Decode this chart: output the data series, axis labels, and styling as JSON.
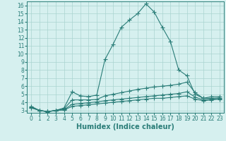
{
  "xlabel": "Humidex (Indice chaleur)",
  "ylabel": "",
  "bg_color": "#d6f0ef",
  "grid_color": "#aad4d0",
  "line_color": "#2a7d78",
  "xlim": [
    -0.5,
    23.5
  ],
  "ylim": [
    2.7,
    16.5
  ],
  "xticks": [
    0,
    1,
    2,
    3,
    4,
    5,
    6,
    7,
    8,
    9,
    10,
    11,
    12,
    13,
    14,
    15,
    16,
    17,
    18,
    19,
    20,
    21,
    22,
    23
  ],
  "yticks": [
    3,
    4,
    5,
    6,
    7,
    8,
    9,
    10,
    11,
    12,
    13,
    14,
    15,
    16
  ],
  "series": [
    {
      "x": [
        0,
        1,
        2,
        3,
        4,
        5,
        6,
        7,
        8,
        9,
        10,
        11,
        12,
        13,
        14,
        15,
        16,
        17,
        18,
        19,
        20,
        21,
        22,
        23
      ],
      "y": [
        3.5,
        3.0,
        2.8,
        3.0,
        3.3,
        5.3,
        4.8,
        4.7,
        4.9,
        9.3,
        11.2,
        13.3,
        14.2,
        15.0,
        16.2,
        15.2,
        13.3,
        11.5,
        8.0,
        7.3,
        5.0,
        4.5,
        4.7,
        4.7
      ]
    },
    {
      "x": [
        0,
        1,
        2,
        3,
        4,
        5,
        6,
        7,
        8,
        9,
        10,
        11,
        12,
        13,
        14,
        15,
        16,
        17,
        18,
        19,
        20,
        21,
        22,
        23
      ],
      "y": [
        3.4,
        3.0,
        2.85,
        3.0,
        3.2,
        4.3,
        4.3,
        4.3,
        4.35,
        4.8,
        5.0,
        5.2,
        5.4,
        5.6,
        5.75,
        5.9,
        6.0,
        6.1,
        6.25,
        6.5,
        5.2,
        4.5,
        4.5,
        4.55
      ]
    },
    {
      "x": [
        0,
        1,
        2,
        3,
        4,
        5,
        6,
        7,
        8,
        9,
        10,
        11,
        12,
        13,
        14,
        15,
        16,
        17,
        18,
        19,
        20,
        21,
        22,
        23
      ],
      "y": [
        3.35,
        3.0,
        2.85,
        3.0,
        3.1,
        3.75,
        3.85,
        3.95,
        4.05,
        4.2,
        4.3,
        4.4,
        4.5,
        4.6,
        4.7,
        4.8,
        4.9,
        5.0,
        5.1,
        5.3,
        4.65,
        4.3,
        4.4,
        4.45
      ]
    },
    {
      "x": [
        0,
        1,
        2,
        3,
        4,
        5,
        6,
        7,
        8,
        9,
        10,
        11,
        12,
        13,
        14,
        15,
        16,
        17,
        18,
        19,
        20,
        21,
        22,
        23
      ],
      "y": [
        3.3,
        3.0,
        2.85,
        3.0,
        3.05,
        3.5,
        3.6,
        3.7,
        3.8,
        3.9,
        4.0,
        4.1,
        4.2,
        4.3,
        4.4,
        4.5,
        4.5,
        4.6,
        4.7,
        4.8,
        4.4,
        4.2,
        4.3,
        4.4
      ]
    }
  ],
  "marker": "+",
  "markersize": 4,
  "linewidth": 0.8,
  "xlabel_fontsize": 7,
  "tick_fontsize": 5.5
}
